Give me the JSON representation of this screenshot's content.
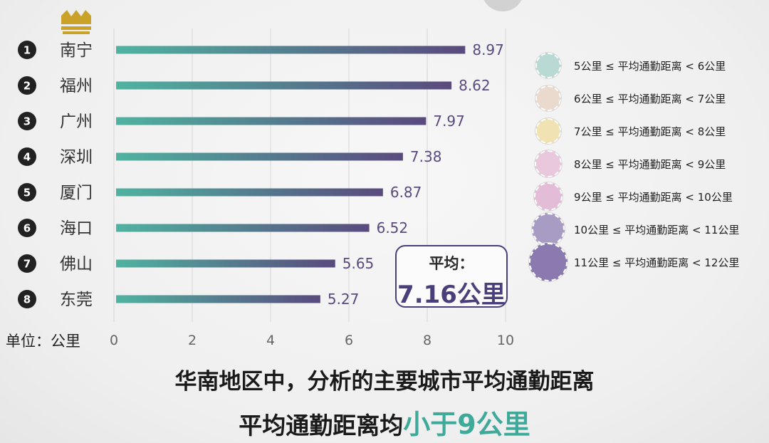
{
  "chart_data": {
    "type": "bar",
    "orientation": "horizontal",
    "categories": [
      "南宁",
      "福州",
      "广州",
      "深圳",
      "厦门",
      "海口",
      "佛山",
      "东莞"
    ],
    "ranks": [
      "1",
      "2",
      "3",
      "4",
      "5",
      "6",
      "7",
      "8"
    ],
    "values": [
      8.97,
      8.62,
      7.97,
      7.38,
      6.87,
      6.52,
      5.65,
      5.27
    ],
    "value_labels": [
      "8.97",
      "8.62",
      "7.97",
      "7.38",
      "6.87",
      "6.52",
      "5.65",
      "5.27"
    ],
    "xlim": [
      0,
      10
    ],
    "xticks": [
      "0",
      "2",
      "4",
      "6",
      "8",
      "10"
    ],
    "unit_label": "单位：公里",
    "grid": "vertical",
    "bar_gradient": [
      "#4fb3a0",
      "#5a4a7e"
    ],
    "top_icon": "crown-icon"
  },
  "average": {
    "title": "平均：",
    "value": "7.16公里"
  },
  "legend": [
    {
      "label": "5公里 ≤ 平均通勤距离 < 6公里",
      "color": "#b9d9d5"
    },
    {
      "label": "6公里 ≤ 平均通勤距离 < 7公里",
      "color": "#ead9cd"
    },
    {
      "label": "7公里 ≤ 平均通勤距离 < 8公里",
      "color": "#f0e2b3"
    },
    {
      "label": "8公里 ≤ 平均通勤距离 < 9公里",
      "color": "#e9c7dd"
    },
    {
      "label": "9公里 ≤ 平均通勤距离 < 10公里",
      "color": "#e3bcd8"
    },
    {
      "label": "10公里 ≤ 平均通勤距离 < 11公里",
      "color": "#a99cc4"
    },
    {
      "label": "11公里 ≤ 平均通勤距离 < 12公里",
      "color": "#8a7aaf"
    }
  ],
  "caption": {
    "line1": "华南地区中，分析的主要城市平均通勤距离",
    "line2_prefix": "平均通勤距离均",
    "line2_highlight": "小于9公里"
  }
}
